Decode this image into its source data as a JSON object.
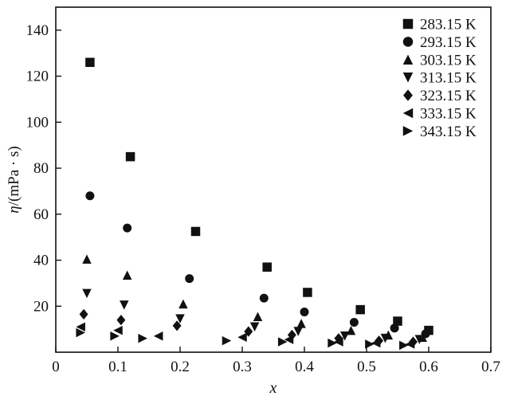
{
  "figure": {
    "background": "#ffffff",
    "marker_color": "#111111",
    "axis_color": "#111111"
  },
  "chart_data": {
    "type": "scatter",
    "title": "",
    "xlabel": "x",
    "ylabel": "η/(mPa · s)",
    "ylabel_parts": [
      {
        "text": "η",
        "italic": true
      },
      {
        "text": "/(mPa · s)",
        "italic": false
      }
    ],
    "xlim": [
      0,
      0.7
    ],
    "ylim": [
      0,
      150
    ],
    "x_ticks": [
      {
        "v": 0,
        "label": "0"
      },
      {
        "v": 0.1,
        "label": "0.1"
      },
      {
        "v": 0.2,
        "label": "0.2"
      },
      {
        "v": 0.3,
        "label": "0.3"
      },
      {
        "v": 0.4,
        "label": "0.4"
      },
      {
        "v": 0.5,
        "label": "0.5"
      },
      {
        "v": 0.6,
        "label": "0.6"
      },
      {
        "v": 0.7,
        "label": "0.7"
      }
    ],
    "y_ticks": [
      {
        "v": 20,
        "label": "20"
      },
      {
        "v": 40,
        "label": "40"
      },
      {
        "v": 60,
        "label": "60"
      },
      {
        "v": 80,
        "label": "80"
      },
      {
        "v": 100,
        "label": "100"
      },
      {
        "v": 120,
        "label": "120"
      },
      {
        "v": 140,
        "label": "140"
      }
    ],
    "grid": false,
    "legend_position": "top-right",
    "series": [
      {
        "name": "283.15 K",
        "marker": "square",
        "points": [
          [
            0.055,
            126
          ],
          [
            0.12,
            85
          ],
          [
            0.225,
            52.5
          ],
          [
            0.34,
            37
          ],
          [
            0.405,
            26
          ],
          [
            0.49,
            18.5
          ],
          [
            0.55,
            13.5
          ],
          [
            0.6,
            9.5
          ]
        ]
      },
      {
        "name": "293.15 K",
        "marker": "circle",
        "points": [
          [
            0.055,
            68
          ],
          [
            0.115,
            54
          ],
          [
            0.215,
            32
          ],
          [
            0.335,
            23.5
          ],
          [
            0.4,
            17.5
          ],
          [
            0.48,
            13
          ],
          [
            0.545,
            10.5
          ],
          [
            0.595,
            8
          ]
        ]
      },
      {
        "name": "303.15 K",
        "marker": "triangle-up",
        "points": [
          [
            0.05,
            40.5
          ],
          [
            0.115,
            33.5
          ],
          [
            0.205,
            21
          ],
          [
            0.325,
            15.5
          ],
          [
            0.395,
            12.5
          ],
          [
            0.475,
            9.5
          ],
          [
            0.535,
            7.5
          ],
          [
            0.59,
            6.5
          ]
        ]
      },
      {
        "name": "313.15 K",
        "marker": "triangle-down",
        "points": [
          [
            0.05,
            25.5
          ],
          [
            0.11,
            20.5
          ],
          [
            0.2,
            14.5
          ],
          [
            0.32,
            11
          ],
          [
            0.39,
            9
          ],
          [
            0.465,
            7
          ],
          [
            0.53,
            6
          ],
          [
            0.585,
            5.5
          ]
        ]
      },
      {
        "name": "323.15 K",
        "marker": "diamond",
        "points": [
          [
            0.045,
            16.5
          ],
          [
            0.105,
            14
          ],
          [
            0.195,
            11.5
          ],
          [
            0.31,
            9
          ],
          [
            0.38,
            7.5
          ],
          [
            0.455,
            6
          ],
          [
            0.52,
            5
          ],
          [
            0.575,
            4.5
          ]
        ]
      },
      {
        "name": "333.15 K",
        "marker": "triangle-left",
        "points": [
          [
            0.04,
            11
          ],
          [
            0.1,
            9.5
          ],
          [
            0.165,
            7
          ],
          [
            0.3,
            6.5
          ],
          [
            0.375,
            5.5
          ],
          [
            0.455,
            4.5
          ],
          [
            0.515,
            4
          ],
          [
            0.57,
            3.5
          ]
        ]
      },
      {
        "name": "343.15 K",
        "marker": "triangle-right",
        "points": [
          [
            0.04,
            8.5
          ],
          [
            0.095,
            7
          ],
          [
            0.14,
            6
          ],
          [
            0.275,
            5
          ],
          [
            0.365,
            4.5
          ],
          [
            0.445,
            4
          ],
          [
            0.505,
            3.5
          ],
          [
            0.56,
            3
          ]
        ]
      }
    ]
  }
}
